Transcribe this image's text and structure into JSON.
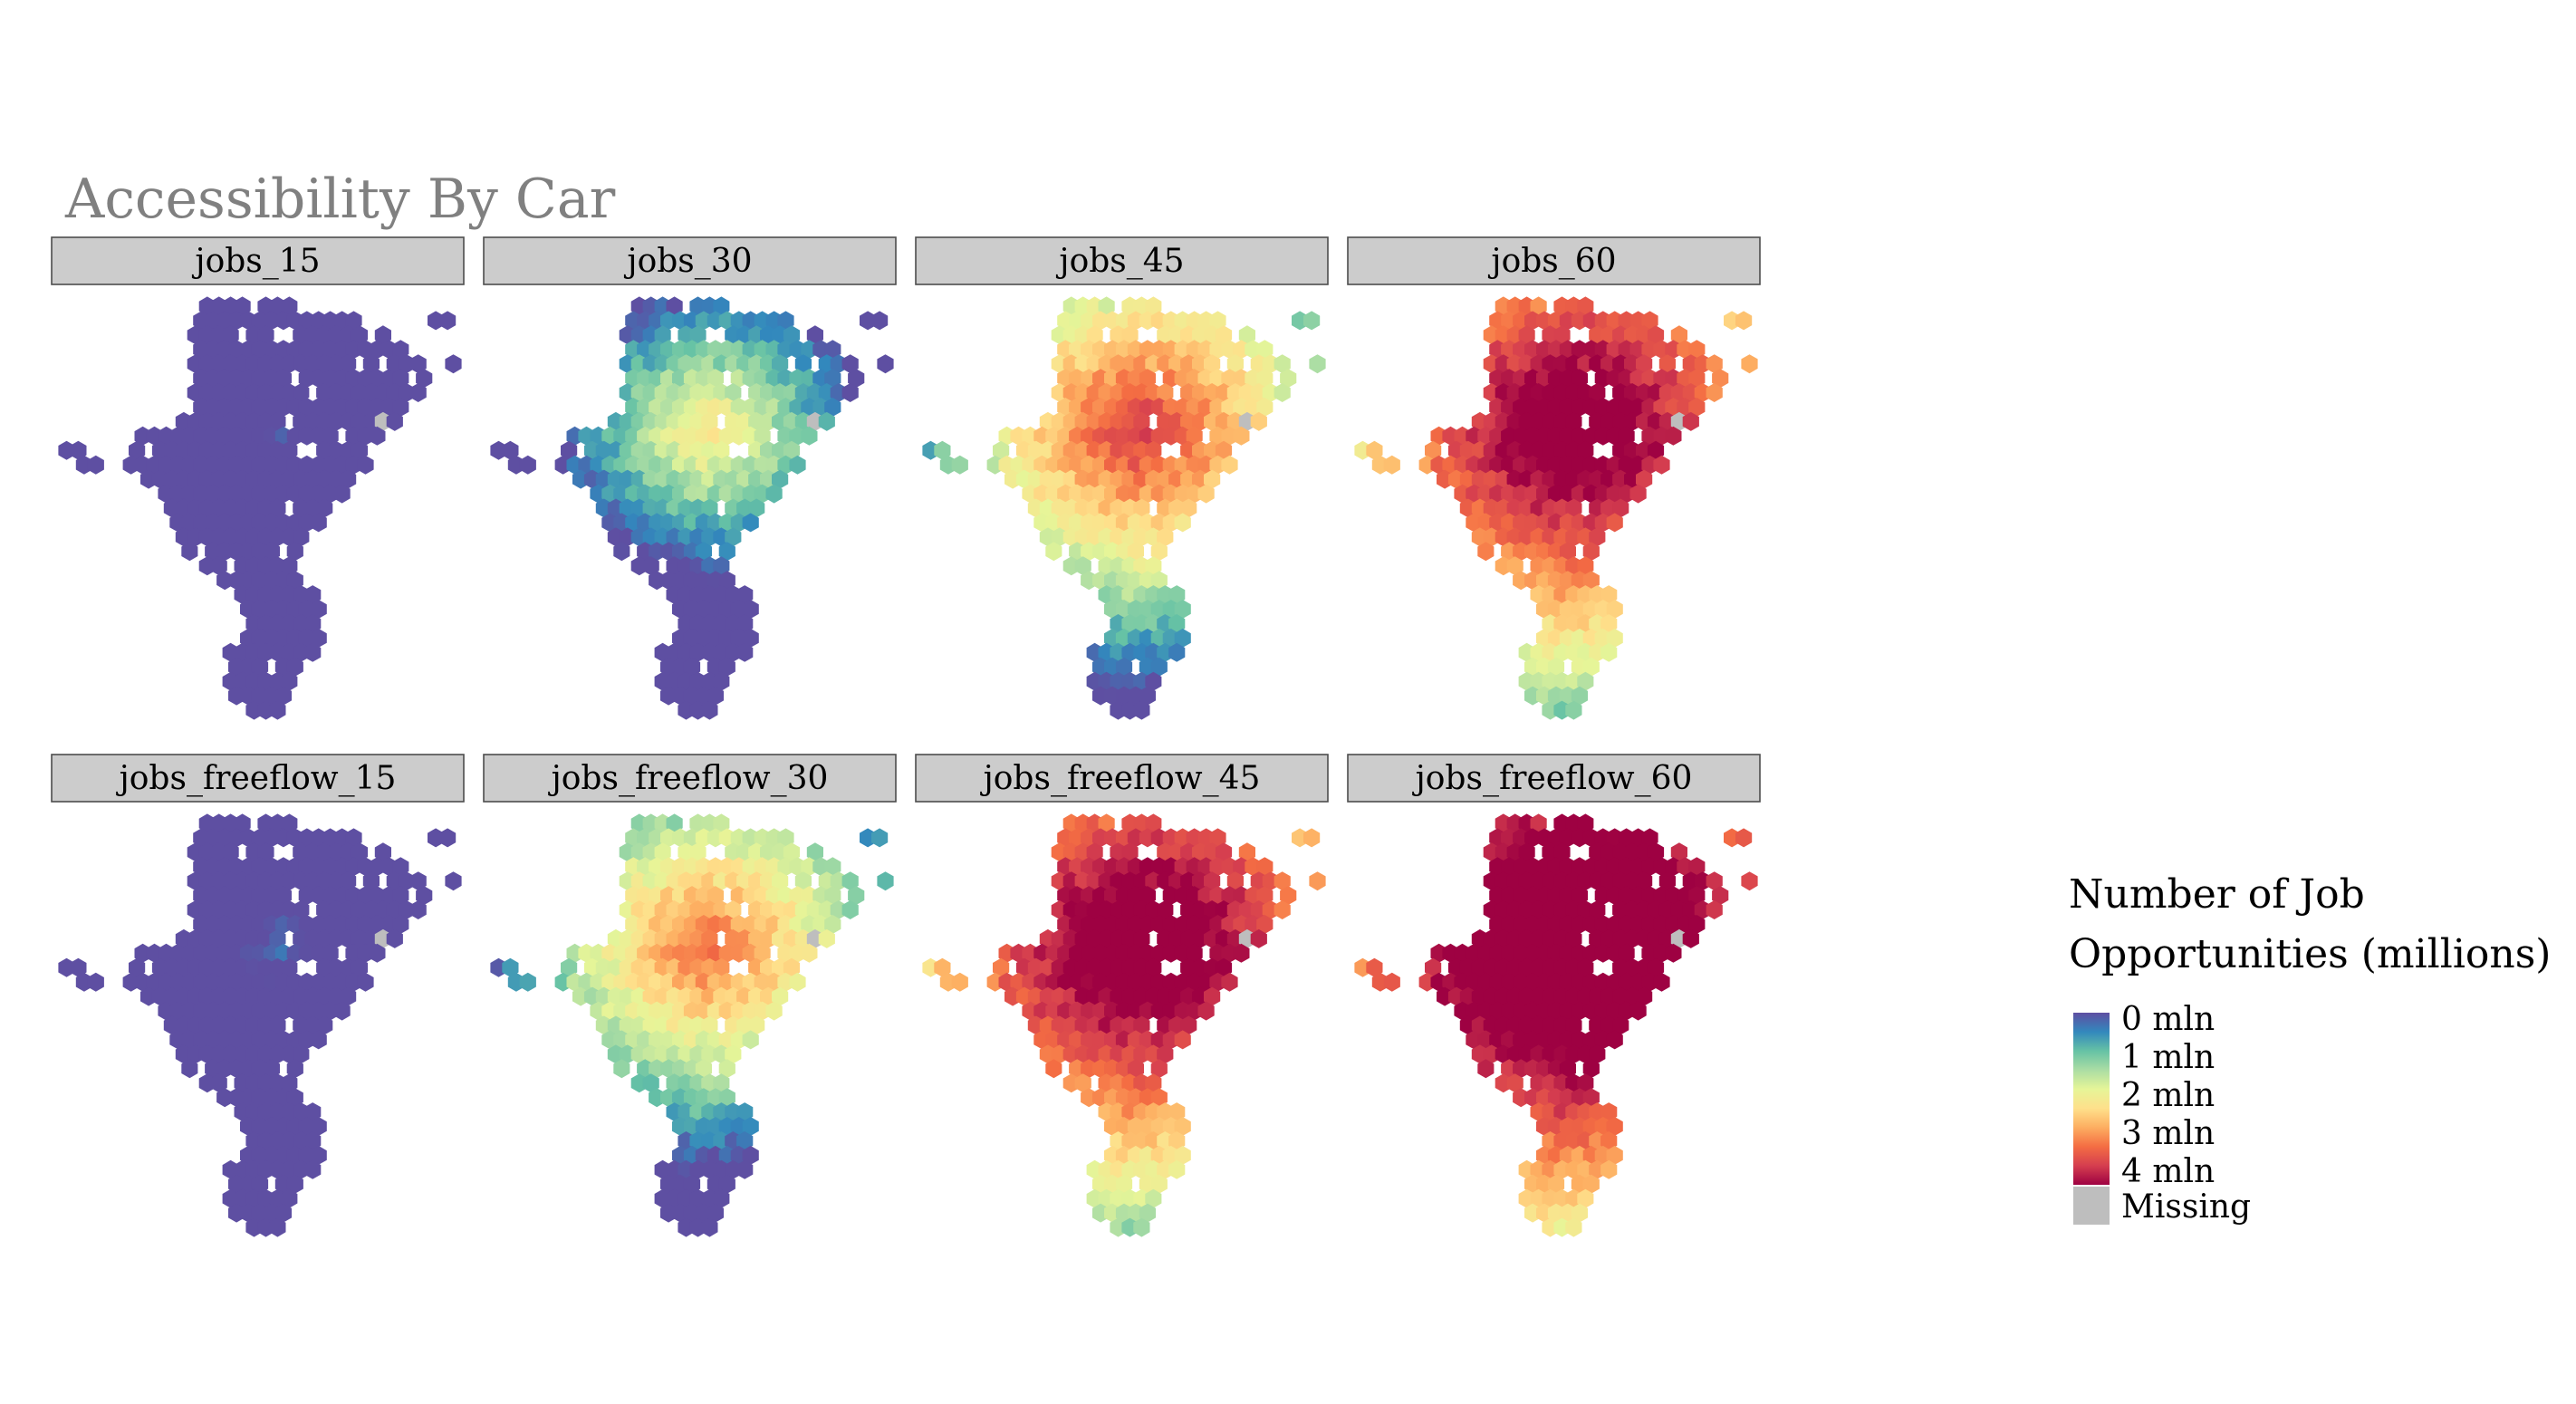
{
  "chart_data": {
    "type": "heatmap",
    "title": "Accessibility By Car",
    "panels": [
      {
        "name": "jobs_15",
        "level": 0.05
      },
      {
        "name": "jobs_30",
        "level": 0.42
      },
      {
        "name": "jobs_45",
        "level": 0.68
      },
      {
        "name": "jobs_60",
        "level": 0.88
      },
      {
        "name": "jobs_freeflow_15",
        "level": 0.08
      },
      {
        "name": "jobs_freeflow_30",
        "level": 0.6
      },
      {
        "name": "jobs_freeflow_45",
        "level": 0.9
      },
      {
        "name": "jobs_freeflow_60",
        "level": 1.0
      }
    ],
    "layout": "2 rows x 4 columns",
    "legend": {
      "title_line1": "Number of Job",
      "title_line2": "Opportunities (millions)",
      "labels": [
        "0 mln",
        "1 mln",
        "2 mln",
        "3 mln",
        "4 mln"
      ],
      "values": [
        0,
        1,
        2,
        3,
        4
      ],
      "missing_label": "Missing",
      "missing_color": "#bebebe",
      "placement": "right",
      "palette": [
        "#5e4fa2",
        "#3288bd",
        "#66c2a5",
        "#abdda4",
        "#e6f598",
        "#fee08b",
        "#fdae61",
        "#f46d43",
        "#d53e4f",
        "#9e0142"
      ]
    }
  }
}
